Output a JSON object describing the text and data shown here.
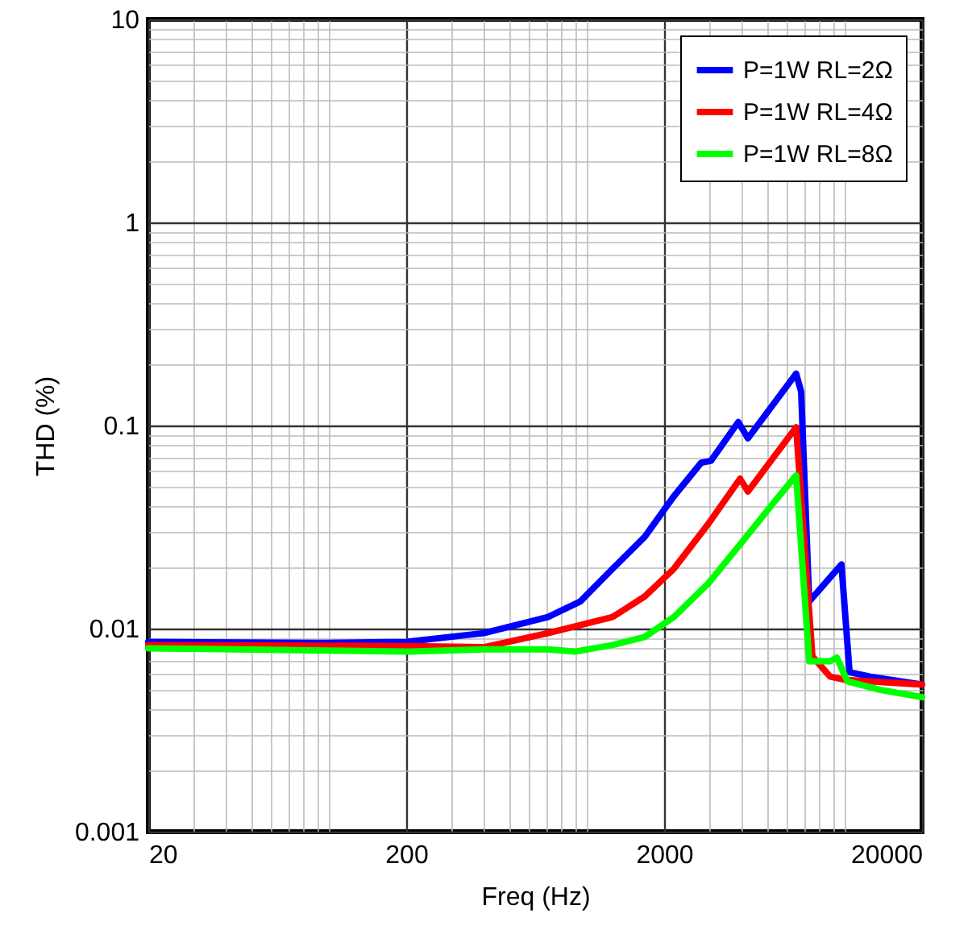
{
  "chart_data": {
    "type": "line",
    "xlabel": "Freq (Hz)",
    "ylabel": "THD (%)",
    "log": "xy",
    "grid": true,
    "legend": "top right",
    "marker": "none",
    "line_style": "solid",
    "xlim": [
      20,
      20000
    ],
    "ylim": [
      0.001,
      10
    ],
    "xticks": [
      20,
      {
        "value": 30,
        "label": null
      },
      {
        "value": 40,
        "label": null
      },
      {
        "value": 50,
        "label": null
      },
      {
        "value": 60,
        "label": null
      },
      {
        "value": 70,
        "label": null
      },
      {
        "value": 80,
        "label": null
      },
      {
        "value": 90,
        "label": null
      },
      {
        "value": 100,
        "label": null
      },
      200,
      {
        "value": 300,
        "label": null
      },
      {
        "value": 400,
        "label": null
      },
      {
        "value": 500,
        "label": null
      },
      {
        "value": 600,
        "label": null
      },
      {
        "value": 700,
        "label": null
      },
      {
        "value": 800,
        "label": null
      },
      {
        "value": 900,
        "label": null
      },
      {
        "value": 1000,
        "label": null
      },
      2000,
      {
        "value": 3000,
        "label": null
      },
      {
        "value": 4000,
        "label": null
      },
      {
        "value": 5000,
        "label": null
      },
      {
        "value": 6000,
        "label": null
      },
      {
        "value": 7000,
        "label": null
      },
      {
        "value": 8000,
        "label": null
      },
      {
        "value": 9000,
        "label": null
      },
      {
        "value": 10000,
        "label": null
      },
      20000
    ],
    "yticks": [
      0.001,
      {
        "value": 0.002,
        "label": null
      },
      {
        "value": 0.003,
        "label": null
      },
      {
        "value": 0.004,
        "label": null
      },
      {
        "value": 0.005,
        "label": null
      },
      {
        "value": 0.006,
        "label": null
      },
      {
        "value": 0.007,
        "label": null
      },
      {
        "value": 0.008,
        "label": null
      },
      {
        "value": 0.009,
        "label": null
      },
      0.01,
      {
        "value": 0.02,
        "label": null
      },
      {
        "value": 0.03,
        "label": null
      },
      {
        "value": 0.04,
        "label": null
      },
      {
        "value": 0.05,
        "label": null
      },
      {
        "value": 0.06,
        "label": null
      },
      {
        "value": 0.07,
        "label": null
      },
      {
        "value": 0.08,
        "label": null
      },
      {
        "value": 0.09,
        "label": null
      },
      0.1,
      {
        "value": 0.2,
        "label": null
      },
      {
        "value": 0.3,
        "label": null
      },
      {
        "value": 0.4,
        "label": null
      },
      {
        "value": 0.5,
        "label": null
      },
      {
        "value": 0.6,
        "label": null
      },
      {
        "value": 0.7,
        "label": null
      },
      {
        "value": 0.8,
        "label": null
      },
      {
        "value": 0.9,
        "label": null
      },
      1,
      {
        "value": 2,
        "label": null
      },
      {
        "value": 3,
        "label": null
      },
      {
        "value": 4,
        "label": null
      },
      {
        "value": 5,
        "label": null
      },
      {
        "value": 6,
        "label": null
      },
      {
        "value": 7,
        "label": null
      },
      {
        "value": 8,
        "label": null
      },
      {
        "value": 9,
        "label": null
      },
      10
    ],
    "series": [
      {
        "name": "P=1W RL=2Ω",
        "color": "#0000ff",
        "x": [
          20,
          95,
          200,
          400,
          709,
          946,
          1262,
          1682,
          2181,
          2785,
          3036,
          3878,
          4227,
          6500,
          6797,
          7304,
          9740,
          10470,
          12620,
          20000
        ],
        "values": [
          0.0086,
          0.0085,
          0.0086,
          0.0095,
          0.0114,
          0.0136,
          0.0197,
          0.0283,
          0.0448,
          0.0656,
          0.067,
          0.104,
          0.0865,
          0.18,
          0.147,
          0.0136,
          0.0207,
          0.0061,
          0.0058,
          0.0053
        ]
      },
      {
        "name": "P=1W RL=4Ω",
        "color": "#ff0000",
        "x": [
          20,
          200,
          400,
          709,
          1262,
          1682,
          2181,
          2968,
          3940,
          4227,
          6500,
          7515,
          8806,
          10000,
          20000
        ],
        "values": [
          0.0083,
          0.0082,
          0.0081,
          0.0095,
          0.0114,
          0.0144,
          0.0197,
          0.0328,
          0.0547,
          0.0473,
          0.098,
          0.0073,
          0.0058,
          0.0056,
          0.0053
        ]
      },
      {
        "name": "P=1W RL=8Ω",
        "color": "#00ff00",
        "x": [
          20,
          200,
          400,
          709,
          900,
          1262,
          1682,
          2181,
          2968,
          3982,
          5310,
          6500,
          7304,
          8806,
          9340,
          10270,
          13680,
          20000
        ],
        "values": [
          0.008,
          0.0077,
          0.0079,
          0.0079,
          0.0077,
          0.0083,
          0.0091,
          0.0114,
          0.0167,
          0.0264,
          0.0416,
          0.0568,
          0.0069,
          0.0069,
          0.0072,
          0.0055,
          0.005,
          0.0046
        ]
      }
    ]
  }
}
